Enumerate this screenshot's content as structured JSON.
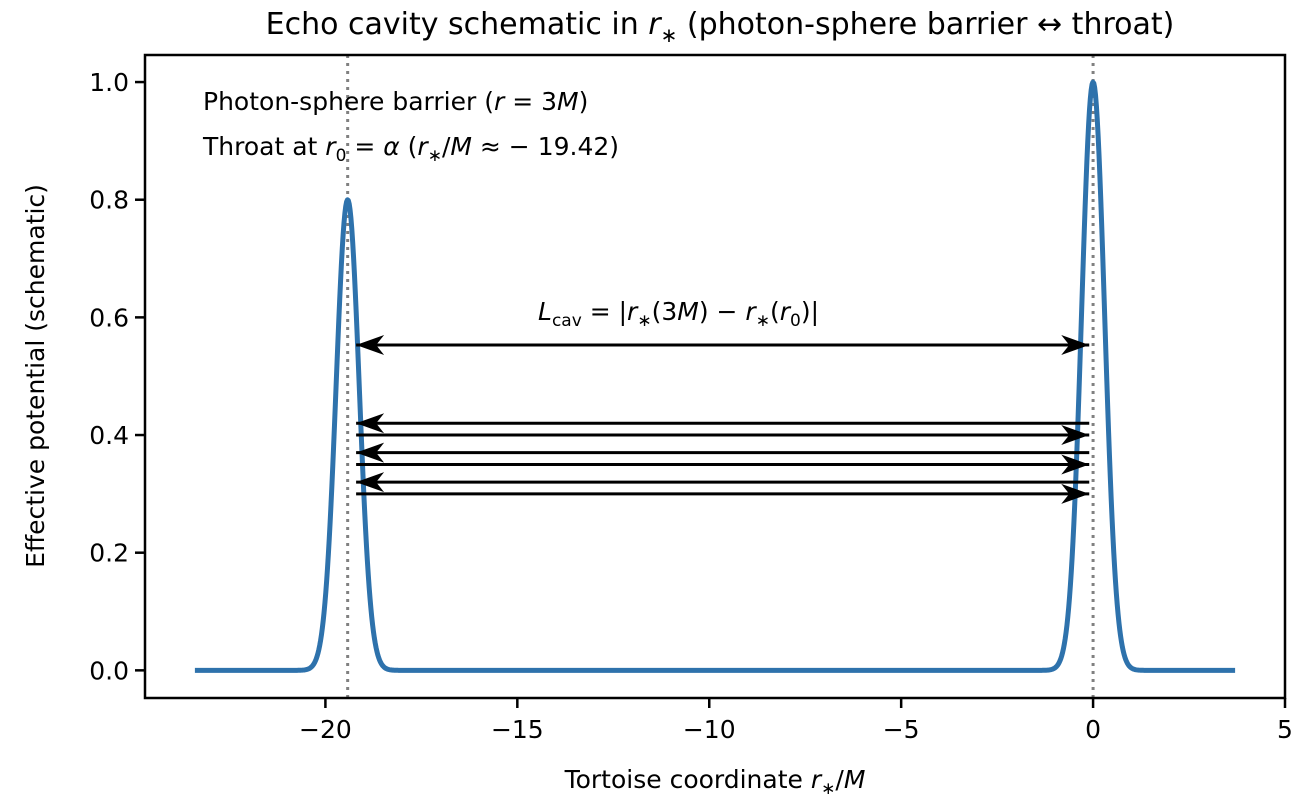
{
  "chart_data": {
    "type": "line",
    "title_parts": [
      "Echo cavity schematic in ",
      "r",
      "∗",
      " (photon-sphere barrier ↔ throat)"
    ],
    "xlabel_parts": [
      "Tortoise coordinate ",
      "r",
      "∗",
      "/",
      "M"
    ],
    "ylabel": "Effective potential (schematic)",
    "xlim": [
      -24.7,
      5
    ],
    "ylim": [
      -0.047,
      1.046
    ],
    "xticks": [
      -20,
      -15,
      -10,
      -5,
      0,
      5
    ],
    "xtick_labels": [
      "−20",
      "−15",
      "−10",
      "−5",
      "0",
      "5"
    ],
    "yticks": [
      0.0,
      0.2,
      0.4,
      0.6,
      0.8,
      1.0
    ],
    "ytick_labels": [
      "0.0",
      "0.2",
      "0.4",
      "0.6",
      "0.8",
      "1.0"
    ],
    "grid": false,
    "series": [
      {
        "name": "Effective potential",
        "color": "#2e72ac",
        "x_range": [
          -23.4,
          3.7
        ],
        "peaks": [
          {
            "center": -19.42,
            "height": 0.8,
            "width": 0.5
          },
          {
            "center": 0.0,
            "height": 1.0,
            "width": 0.5
          }
        ]
      }
    ],
    "vlines": [
      {
        "x": -19.42,
        "style": "dotted",
        "color": "#808080"
      },
      {
        "x": 0.0,
        "style": "dotted",
        "color": "#808080"
      }
    ],
    "cavity_arrow": {
      "x_from": -19.2,
      "x_to": -0.1,
      "y": 0.553,
      "style": "double"
    },
    "bounce_arrows": [
      {
        "y": 0.42,
        "direction": "left"
      },
      {
        "y": 0.4,
        "direction": "right"
      },
      {
        "y": 0.37,
        "direction": "left"
      },
      {
        "y": 0.35,
        "direction": "right"
      },
      {
        "y": 0.32,
        "direction": "left"
      },
      {
        "y": 0.3,
        "direction": "right"
      }
    ],
    "bounce_x_range": [
      -19.2,
      -0.1
    ],
    "annotations": {
      "barrier_label": {
        "pre": "Photon-sphere barrier (",
        "var": "r",
        "eq": " = 3",
        "M": "M",
        "post": ")"
      },
      "throat_label": {
        "pre": "Throat at ",
        "r": "r",
        "sub0": "0",
        "eq": " = ",
        "alpha": "α",
        "open": " (",
        "rs": "r",
        "star": "∗",
        "slash": "/",
        "M": "M",
        "approx": " ≈ − 19.42)"
      },
      "cavity_label": {
        "L": "L",
        "sub": "cav",
        "eq": " = |",
        "r1": "r",
        "star1": "∗",
        "mid": "(3",
        "M": "M",
        "minus": ") − ",
        "r2": "r",
        "star2": "∗",
        "open": "(",
        "r3": "r",
        "sub0": "0",
        "close": ")|"
      }
    },
    "colors": {
      "line": "#2e72ac",
      "vline": "#808080",
      "arrow": "#000000"
    }
  }
}
